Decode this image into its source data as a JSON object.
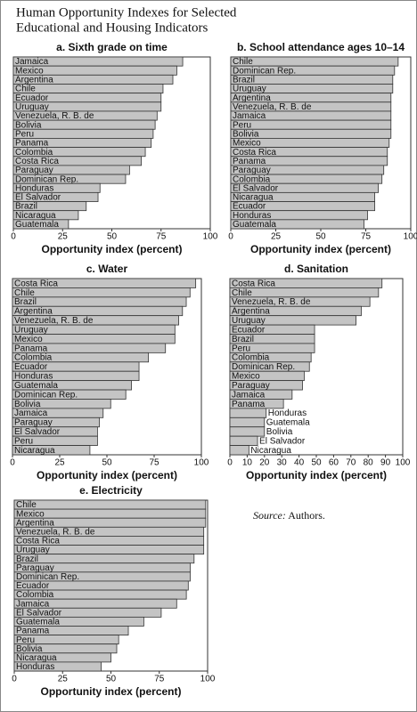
{
  "figure": {
    "title_lines": [
      "Human Opportunity Indexes for Selected",
      "Educational and Housing Indicators"
    ],
    "source_label": "Source:",
    "source_text": "Authors."
  },
  "chart_data": [
    {
      "type": "bar",
      "orientation": "horizontal",
      "title": "a. Sixth grade on time",
      "xlabel": "Opportunity index (percent)",
      "color": "#c4c4c4",
      "categories": [
        "Jamaica",
        "Mexico",
        "Argentina",
        "Chile",
        "Ecuador",
        "Uruguay",
        "Venezuela, R. B. de",
        "Bolivia",
        "Peru",
        "Panama",
        "Colombia",
        "Costa Rica",
        "Paraguay",
        "Dominican Rep.",
        "Honduras",
        "El Salvador",
        "Brazil",
        "Nicaragua",
        "Guatemala"
      ],
      "values": [
        86,
        83,
        81,
        76,
        75,
        75,
        73,
        72,
        71,
        70,
        67,
        65,
        59,
        57,
        44,
        43,
        37,
        33,
        28
      ],
      "xlim": [
        0,
        100
      ],
      "xticks": [
        0,
        25,
        50,
        75,
        100
      ]
    },
    {
      "type": "bar",
      "orientation": "horizontal",
      "title": "b. School attendance ages 10–14",
      "xlabel": "Opportunity index (percent)",
      "color": "#c4c4c4",
      "categories": [
        "Chile",
        "Dominican Rep.",
        "Brazil",
        "Uruguay",
        "Argentina",
        "Venezuela, R. B. de",
        "Jamaica",
        "Peru",
        "Bolivia",
        "Mexico",
        "Costa Rica",
        "Panama",
        "Paraguay",
        "Colombia",
        "El Salvador",
        "Nicaragua",
        "Ecuador",
        "Honduras",
        "Guatemala"
      ],
      "values": [
        93,
        91,
        90,
        90,
        89,
        89,
        89,
        89,
        89,
        88,
        87,
        87,
        85,
        84,
        82,
        80,
        80,
        76,
        74
      ],
      "xlim": [
        0,
        100
      ],
      "xticks": [
        0,
        25,
        50,
        75,
        100
      ]
    },
    {
      "type": "bar",
      "orientation": "horizontal",
      "title": "c. Water",
      "xlabel": "Opportunity index (percent)",
      "color": "#c4c4c4",
      "categories": [
        "Costa Rica",
        "Chile",
        "Brazil",
        "Argentina",
        "Venezuela, R. B. de",
        "Uruguay",
        "Mexico",
        "Panama",
        "Colombia",
        "Ecuador",
        "Honduras",
        "Guatemala",
        "Dominican Rep.",
        "Bolivia",
        "Jamaica",
        "Paraguay",
        "El Salvador",
        "Peru",
        "Nicaragua"
      ],
      "values": [
        97,
        94,
        92,
        90,
        88,
        86,
        86,
        81,
        72,
        67,
        67,
        63,
        60,
        52,
        48,
        46,
        45,
        45,
        41
      ],
      "xlim": [
        0,
        100
      ],
      "xticks": [
        0,
        25,
        50,
        75,
        100
      ]
    },
    {
      "type": "bar",
      "orientation": "horizontal",
      "title": "d. Sanitation",
      "xlabel": "Opportunity index (percent)",
      "color": "#c4c4c4",
      "categories": [
        "Costa Rica",
        "Chile",
        "Venezuela, R. B. de",
        "Argentina",
        "Uruguay",
        "Ecuador",
        "Brazil",
        "Peru",
        "Colombia",
        "Dominican Rep.",
        "Mexico",
        "Paraguay",
        "Jamaica",
        "Panama",
        "Honduras",
        "Guatemala",
        "Bolivia",
        "El Salvador",
        "Nicaragua"
      ],
      "values": [
        88,
        86,
        81,
        76,
        73,
        49,
        49,
        49,
        47,
        46,
        43,
        42,
        36,
        31,
        21,
        20,
        20,
        16,
        11
      ],
      "xlim": [
        0,
        100
      ],
      "xticks": [
        0,
        10,
        20,
        30,
        40,
        50,
        60,
        70,
        80,
        90,
        100
      ]
    },
    {
      "type": "bar",
      "orientation": "horizontal",
      "title": "e. Electricity",
      "xlabel": "Opportunity index (percent)",
      "color": "#c4c4c4",
      "categories": [
        "Chile",
        "Mexico",
        "Argentina",
        "Venezuela, R. B. de",
        "Costa Rica",
        "Uruguay",
        "Brazil",
        "Paraguay",
        "Dominican Rep.",
        "Ecuador",
        "Colombia",
        "Jamaica",
        "El Salvador",
        "Guatemala",
        "Panama",
        "Peru",
        "Bolivia",
        "Nicaragua",
        "Honduras"
      ],
      "values": [
        99,
        99,
        99,
        98,
        98,
        98,
        93,
        91,
        91,
        90,
        89,
        84,
        76,
        67,
        59,
        54,
        53,
        50,
        45
      ],
      "xlim": [
        0,
        100
      ],
      "xticks": [
        0,
        25,
        50,
        75,
        100
      ]
    }
  ]
}
